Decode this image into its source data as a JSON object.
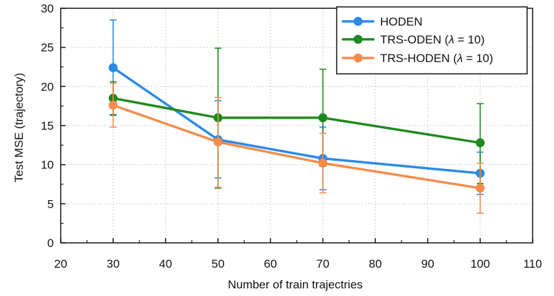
{
  "chart_data": {
    "type": "line",
    "title": "",
    "xlabel": "Number of train trajectries",
    "ylabel": "Test MSE (trajectory)",
    "xlim": [
      20,
      110
    ],
    "ylim": [
      0,
      30
    ],
    "xticks": [
      20,
      30,
      40,
      50,
      60,
      70,
      80,
      90,
      100,
      110
    ],
    "yticks": [
      0,
      5,
      10,
      15,
      20,
      25,
      30
    ],
    "grid": true,
    "legend_position": "top-right",
    "x": [
      30,
      50,
      70,
      100
    ],
    "series": [
      {
        "name": "HODEN",
        "color": "#2D8AE8",
        "values": [
          22.4,
          13.2,
          10.8,
          8.9
        ],
        "err_low": [
          16.3,
          8.3,
          6.8,
          6.2
        ],
        "err_high": [
          28.5,
          18.2,
          14.8,
          11.6
        ]
      },
      {
        "name": "TRS-ODEN (λ = 10)",
        "label_main": "TRS-ODEN (",
        "label_symbol": "λ",
        "label_tail": " = 10)",
        "color": "#1E8A1E",
        "values": [
          18.5,
          16.0,
          16.0,
          12.8
        ],
        "err_low": [
          16.4,
          7.0,
          9.8,
          7.6
        ],
        "err_high": [
          20.6,
          24.9,
          22.2,
          17.8
        ]
      },
      {
        "name": "TRS-HODEN (λ = 10)",
        "label_main": "TRS-HODEN (",
        "label_symbol": "λ",
        "label_tail": " = 10)",
        "color": "#F58C4B",
        "values": [
          17.6,
          12.9,
          10.2,
          7.0
        ],
        "err_low": [
          14.8,
          7.1,
          6.4,
          3.8
        ],
        "err_high": [
          20.4,
          18.6,
          14.0,
          10.2
        ]
      }
    ]
  }
}
